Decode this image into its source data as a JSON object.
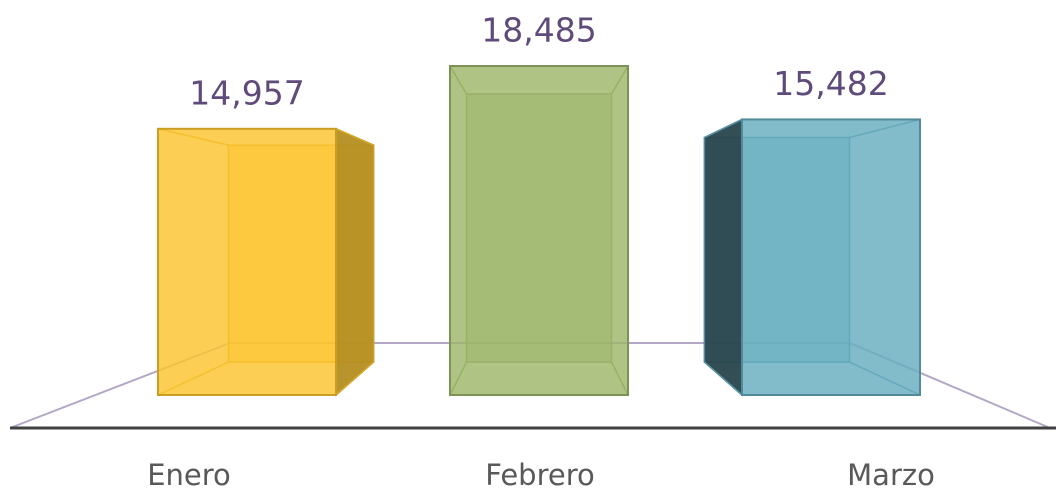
{
  "chart_data": {
    "type": "bar3d",
    "categories": [
      "Enero",
      "Febrero",
      "Marzo"
    ],
    "values": [
      14957,
      18485,
      15482
    ],
    "value_labels": [
      "14,957",
      "18,485",
      "15,482"
    ],
    "colors": [
      "#fbc52e",
      "#9cb669",
      "#67adc0"
    ]
  }
}
